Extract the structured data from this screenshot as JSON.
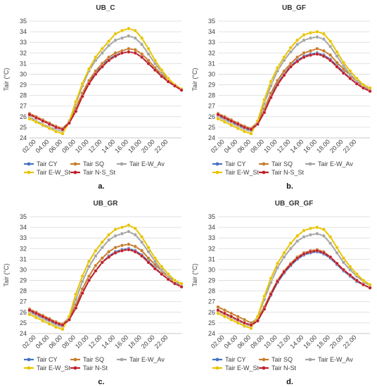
{
  "chart_data": [
    {
      "type": "line",
      "title": "UB_C",
      "ylabel": "Tair (°C)",
      "label": "a.",
      "ylim": [
        24,
        35
      ],
      "yticks": [
        24,
        25,
        26,
        27,
        28,
        29,
        30,
        31,
        32,
        33,
        34,
        35
      ],
      "x_ticks": [
        "02.00",
        "04.00",
        "06.00",
        "08.00",
        "10.00",
        "12.00",
        "14.00",
        "16.00",
        "18.00",
        "20.00",
        "22.00"
      ],
      "x": [
        1,
        2,
        3,
        4,
        5,
        6,
        7,
        8,
        9,
        10,
        11,
        12,
        13,
        14,
        15,
        16,
        17,
        18,
        19,
        20,
        21,
        22,
        23,
        24
      ],
      "legend": [
        "Tair CY",
        "Tair SQ",
        "Tair E-W_Av",
        "Tair E-W_St",
        "Tair N-S_St"
      ],
      "series": [
        {
          "name": "Tair CY",
          "color": "#4472C4",
          "values": [
            26.2,
            25.9,
            25.6,
            25.3,
            25.0,
            24.8,
            25.4,
            26.6,
            28.0,
            29.2,
            30.1,
            30.8,
            31.4,
            31.8,
            32.0,
            32.1,
            32.0,
            31.6,
            31.0,
            30.4,
            29.8,
            29.3,
            28.9,
            28.5
          ]
        },
        {
          "name": "Tair SQ",
          "color": "#C77C2C",
          "values": [
            26.3,
            26.0,
            25.7,
            25.4,
            25.1,
            24.9,
            25.5,
            26.8,
            28.2,
            29.4,
            30.3,
            31.0,
            31.6,
            32.0,
            32.2,
            32.4,
            32.3,
            31.9,
            31.3,
            30.6,
            30.0,
            29.4,
            29.0,
            28.6
          ]
        },
        {
          "name": "Tair E-W_Av",
          "color": "#A5A5A5",
          "values": [
            26.0,
            25.6,
            25.3,
            25.0,
            24.8,
            24.6,
            25.6,
            27.2,
            28.9,
            30.3,
            31.3,
            32.0,
            32.7,
            33.2,
            33.4,
            33.6,
            33.4,
            32.8,
            31.9,
            31.0,
            30.2,
            29.5,
            29.0,
            28.6
          ]
        },
        {
          "name": "Tair E-W_St",
          "color": "#E8C400",
          "values": [
            25.8,
            25.5,
            25.2,
            24.9,
            24.6,
            24.4,
            25.5,
            27.4,
            29.1,
            30.5,
            31.6,
            32.4,
            33.1,
            33.8,
            34.1,
            34.3,
            34.1,
            33.4,
            32.4,
            31.3,
            30.4,
            29.6,
            29.0,
            28.6
          ]
        },
        {
          "name": "Tair N-S_St",
          "color": "#C0202A",
          "values": [
            26.2,
            25.9,
            25.6,
            25.3,
            25.0,
            24.8,
            25.4,
            26.5,
            27.9,
            29.1,
            30.0,
            30.7,
            31.3,
            31.7,
            32.0,
            32.1,
            32.0,
            31.6,
            31.0,
            30.4,
            29.8,
            29.3,
            28.9,
            28.5
          ]
        }
      ]
    },
    {
      "type": "line",
      "title": "UB_GF",
      "ylabel": "Tair (°C)",
      "label": "b.",
      "ylim": [
        24,
        35
      ],
      "yticks": [
        24,
        25,
        26,
        27,
        28,
        29,
        30,
        31,
        32,
        33,
        34,
        35
      ],
      "x_ticks": [
        "02.00",
        "04.00",
        "06.00",
        "08.00",
        "10.00",
        "12.00",
        "14.00",
        "16.00",
        "18.00",
        "20.00",
        "22.00"
      ],
      "x": [
        1,
        2,
        3,
        4,
        5,
        6,
        7,
        8,
        9,
        10,
        11,
        12,
        13,
        14,
        15,
        16,
        17,
        18,
        19,
        20,
        21,
        22,
        23,
        24
      ],
      "legend": [
        "Tair CY",
        "Tair SQ",
        "Tair E-W_Av",
        "Tair E-W_St",
        "Tair N-S_St"
      ],
      "series": [
        {
          "name": "Tair CY",
          "color": "#4472C4",
          "values": [
            26.1,
            25.8,
            25.5,
            25.2,
            24.9,
            24.7,
            25.3,
            26.4,
            27.9,
            29.1,
            30.0,
            30.8,
            31.3,
            31.7,
            31.9,
            32.0,
            31.8,
            31.4,
            30.8,
            30.2,
            29.6,
            29.1,
            28.7,
            28.4
          ]
        },
        {
          "name": "Tair SQ",
          "color": "#C77C2C",
          "values": [
            26.3,
            26.0,
            25.7,
            25.4,
            25.1,
            24.9,
            25.5,
            26.7,
            28.2,
            29.4,
            30.3,
            31.0,
            31.6,
            32.0,
            32.2,
            32.4,
            32.2,
            31.8,
            31.1,
            30.5,
            29.9,
            29.3,
            28.9,
            28.5
          ]
        },
        {
          "name": "Tair E-W_Av",
          "color": "#A5A5A5",
          "values": [
            26.0,
            25.7,
            25.4,
            25.1,
            24.8,
            24.6,
            25.6,
            27.2,
            28.9,
            30.3,
            31.3,
            32.1,
            32.8,
            33.2,
            33.4,
            33.5,
            33.3,
            32.6,
            31.7,
            30.8,
            30.0,
            29.4,
            28.9,
            28.5
          ]
        },
        {
          "name": "Tair E-W_St",
          "color": "#E8C400",
          "values": [
            25.8,
            25.5,
            25.2,
            24.9,
            24.6,
            24.4,
            25.6,
            27.6,
            29.3,
            30.6,
            31.6,
            32.5,
            33.2,
            33.7,
            33.9,
            34.0,
            33.8,
            33.1,
            32.1,
            31.1,
            30.3,
            29.6,
            29.0,
            28.7
          ]
        },
        {
          "name": "Tair N-S_St",
          "color": "#C0202A",
          "values": [
            26.2,
            25.9,
            25.6,
            25.3,
            25.0,
            24.8,
            25.3,
            26.4,
            27.8,
            29.0,
            29.9,
            30.7,
            31.2,
            31.6,
            31.8,
            31.9,
            31.7,
            31.3,
            30.7,
            30.1,
            29.6,
            29.1,
            28.7,
            28.4
          ]
        }
      ]
    },
    {
      "type": "line",
      "title": "UB_GR",
      "ylabel": "Tair (°C)",
      "label": "c.",
      "ylim": [
        24,
        35
      ],
      "yticks": [
        24,
        25,
        26,
        27,
        28,
        29,
        30,
        31,
        32,
        33,
        34,
        35
      ],
      "x_ticks": [
        "02.00",
        "04.00",
        "06.00",
        "08.00",
        "10.00",
        "12.00",
        "14.00",
        "16.00",
        "18.00",
        "20.00",
        "22.00"
      ],
      "x": [
        1,
        2,
        3,
        4,
        5,
        6,
        7,
        8,
        9,
        10,
        11,
        12,
        13,
        14,
        15,
        16,
        17,
        18,
        19,
        20,
        21,
        22,
        23,
        24
      ],
      "legend": [
        "Tair CY",
        "Tair SQ",
        "Tair E-W_Av",
        "Tair E-W_St",
        "Tair N-St"
      ],
      "series": [
        {
          "name": "Tair CY",
          "color": "#4472C4",
          "values": [
            26.1,
            25.8,
            25.5,
            25.2,
            24.9,
            24.7,
            25.3,
            26.4,
            27.8,
            29.0,
            29.9,
            30.7,
            31.3,
            31.7,
            31.9,
            32.0,
            31.8,
            31.4,
            30.8,
            30.2,
            29.6,
            29.1,
            28.7,
            28.4
          ]
        },
        {
          "name": "Tair SQ",
          "color": "#C77C2C",
          "values": [
            26.3,
            26.0,
            25.7,
            25.4,
            25.1,
            24.9,
            25.5,
            26.7,
            28.2,
            29.4,
            30.4,
            31.1,
            31.7,
            32.1,
            32.3,
            32.4,
            32.2,
            31.8,
            31.1,
            30.5,
            29.9,
            29.3,
            28.9,
            28.5
          ]
        },
        {
          "name": "Tair E-W_Av",
          "color": "#A5A5A5",
          "values": [
            26.0,
            25.7,
            25.4,
            25.1,
            24.8,
            24.6,
            25.6,
            27.2,
            28.9,
            30.3,
            31.3,
            32.1,
            32.8,
            33.2,
            33.4,
            33.6,
            33.3,
            32.6,
            31.7,
            30.8,
            30.0,
            29.4,
            28.9,
            28.5
          ]
        },
        {
          "name": "Tair E-W_St",
          "color": "#E8C400",
          "values": [
            25.8,
            25.5,
            25.2,
            24.9,
            24.6,
            24.4,
            25.6,
            27.7,
            29.4,
            30.8,
            31.8,
            32.6,
            33.3,
            33.8,
            34.0,
            34.2,
            33.9,
            33.1,
            32.1,
            31.1,
            30.3,
            29.6,
            29.0,
            28.7
          ]
        },
        {
          "name": "Tair N-St",
          "color": "#C0202A",
          "values": [
            26.2,
            25.9,
            25.6,
            25.3,
            25.0,
            24.8,
            25.3,
            26.4,
            27.8,
            29.0,
            29.9,
            30.7,
            31.2,
            31.6,
            31.8,
            31.9,
            31.7,
            31.3,
            30.7,
            30.1,
            29.6,
            29.1,
            28.7,
            28.4
          ]
        }
      ]
    },
    {
      "type": "line",
      "title": "UB_GR_GF",
      "ylabel": "Tair (°C)",
      "label": "d.",
      "ylim": [
        24,
        35
      ],
      "yticks": [
        24,
        25,
        26,
        27,
        28,
        29,
        30,
        31,
        32,
        33,
        34,
        35
      ],
      "x_ticks": [
        "02.00",
        "04.00",
        "06.00",
        "08.00",
        "10.00",
        "12.00",
        "14.00",
        "16.00",
        "18.00",
        "20.00",
        "22.00"
      ],
      "x": [
        1,
        2,
        3,
        4,
        5,
        6,
        7,
        8,
        9,
        10,
        11,
        12,
        13,
        14,
        15,
        16,
        17,
        18,
        19,
        20,
        21,
        22,
        23,
        24
      ],
      "legend": [
        "Tair CY",
        "Tair SQ",
        "Tair E-W_Av",
        "Tair E-W_St",
        "Tair N-St"
      ],
      "series": [
        {
          "name": "Tair CY",
          "color": "#4472C4",
          "values": [
            26.1,
            25.8,
            25.5,
            25.2,
            24.9,
            24.7,
            25.2,
            26.3,
            27.6,
            28.8,
            29.7,
            30.4,
            31.0,
            31.4,
            31.6,
            31.7,
            31.5,
            31.1,
            30.5,
            29.9,
            29.4,
            28.9,
            28.6,
            28.3
          ]
        },
        {
          "name": "Tair SQ",
          "color": "#C77C2C",
          "values": [
            26.5,
            26.2,
            25.9,
            25.6,
            25.3,
            25.0,
            25.4,
            26.5,
            27.8,
            29.0,
            29.9,
            30.6,
            31.2,
            31.6,
            31.8,
            31.9,
            31.7,
            31.2,
            30.6,
            30.0,
            29.5,
            29.0,
            28.6,
            28.3
          ]
        },
        {
          "name": "Tair E-W_Av",
          "color": "#A5A5A5",
          "values": [
            26.1,
            25.8,
            25.5,
            25.2,
            24.9,
            24.7,
            25.6,
            27.2,
            28.8,
            30.2,
            31.2,
            32.0,
            32.7,
            33.1,
            33.3,
            33.4,
            33.2,
            32.5,
            31.6,
            30.7,
            30.0,
            29.4,
            28.9,
            28.5
          ]
        },
        {
          "name": "Tair E-W_St",
          "color": "#E8C400",
          "values": [
            25.9,
            25.6,
            25.3,
            25.0,
            24.7,
            24.5,
            25.6,
            27.5,
            29.2,
            30.6,
            31.6,
            32.5,
            33.2,
            33.7,
            33.9,
            34.0,
            33.8,
            33.1,
            32.1,
            31.1,
            30.3,
            29.6,
            29.0,
            28.6
          ]
        },
        {
          "name": "Tair N-St",
          "color": "#C0202A",
          "values": [
            26.2,
            25.9,
            25.6,
            25.3,
            25.0,
            24.8,
            25.2,
            26.3,
            27.7,
            28.9,
            29.8,
            30.5,
            31.1,
            31.5,
            31.7,
            31.8,
            31.6,
            31.2,
            30.6,
            30.0,
            29.5,
            29.0,
            28.6,
            28.3
          ]
        }
      ]
    }
  ]
}
